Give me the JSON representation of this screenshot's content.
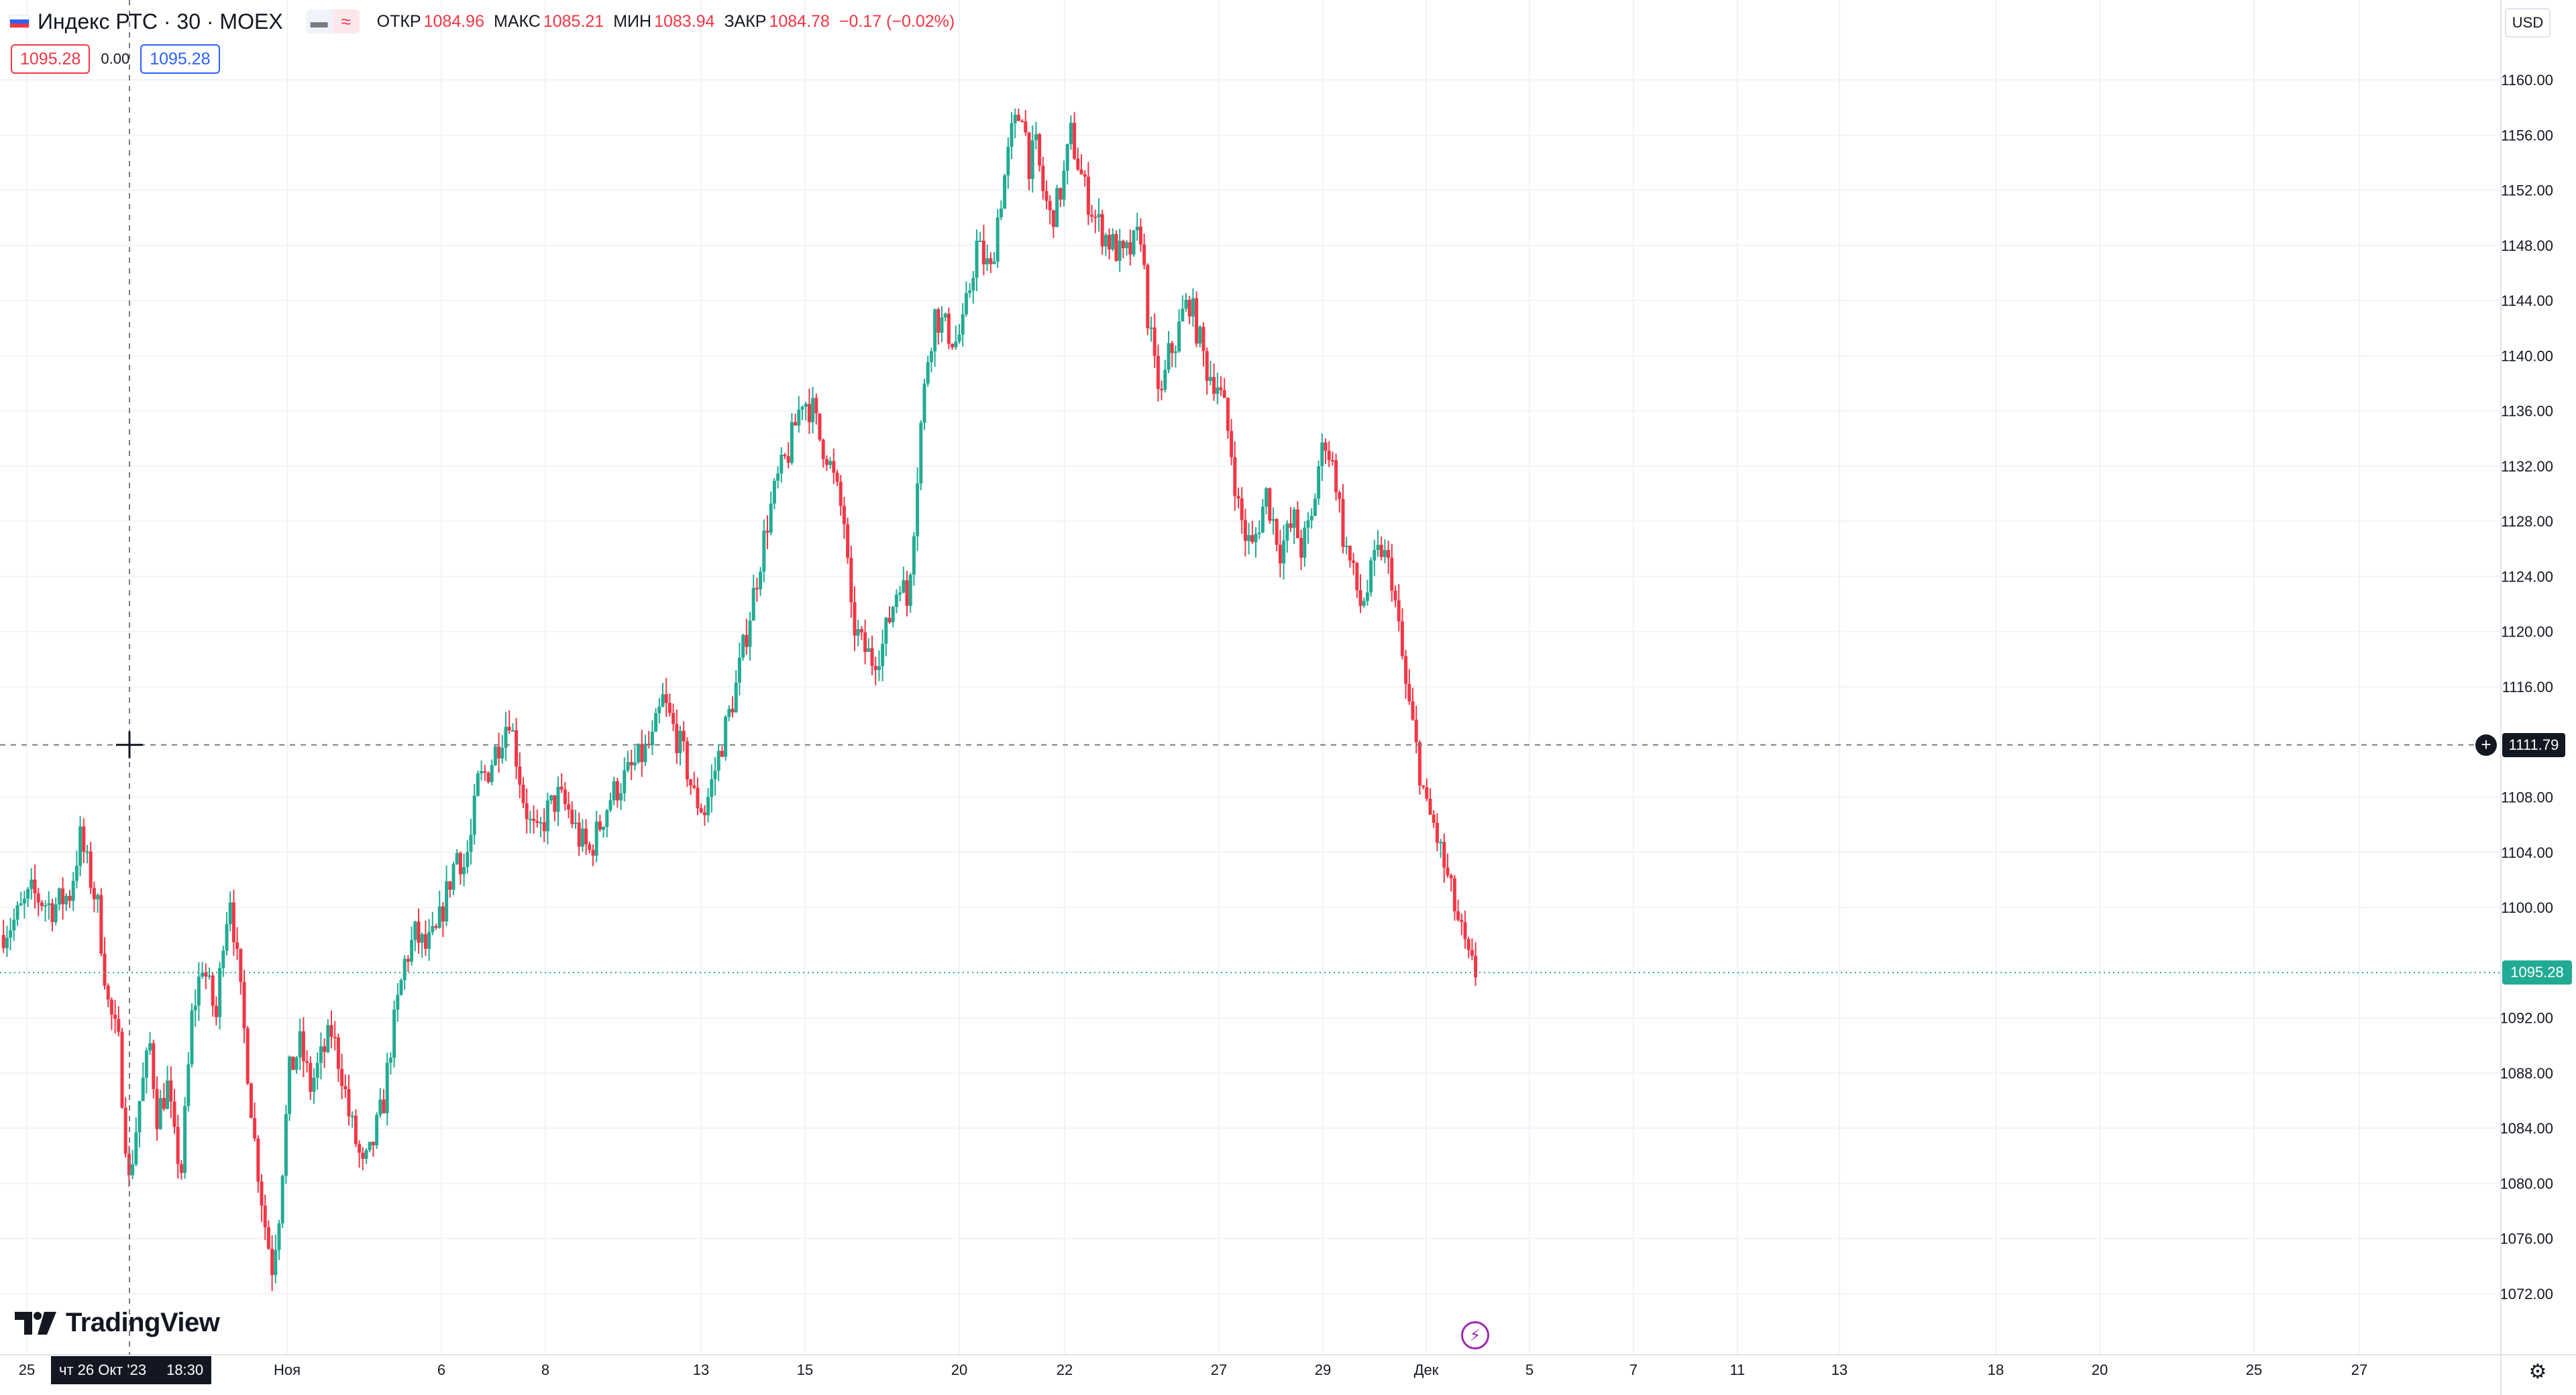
{
  "header": {
    "symbol": "Индекс РТС · 30 · MOEX",
    "ohlc": [
      {
        "label": "ОТКР",
        "value": "1084.96"
      },
      {
        "label": "МАКС",
        "value": "1085.21"
      },
      {
        "label": "МИН",
        "value": "1083.94"
      },
      {
        "label": "ЗАКР",
        "value": "1084.78"
      }
    ],
    "change": "−0.17 (−0.02%)",
    "toggle_icons": [
      "minus-icon",
      "wave-icon"
    ]
  },
  "pricebox": {
    "sell": "1095.28",
    "spread": "0.00",
    "buy": "1095.28"
  },
  "currency": "USD",
  "logo": {
    "text": "TradingView"
  },
  "crosshair": {
    "date": "чт 26 Окт '23",
    "time": "18:30",
    "price": "1111.79"
  },
  "last_price": "1095.28",
  "colors": {
    "up": "#22ab94",
    "down": "#f23645",
    "grid": "#f0f3fa",
    "accent": "#2962ff"
  },
  "chart_data": {
    "type": "candlestick",
    "interval": "30",
    "ylim": [
      1070,
      1162
    ],
    "y_ticks": [
      "1160.00",
      "1156.00",
      "1152.00",
      "1148.00",
      "1144.00",
      "1140.00",
      "1136.00",
      "1132.00",
      "1128.00",
      "1124.00",
      "1120.00",
      "1116.00",
      "1108.00",
      "1104.00",
      "1100.00",
      "1092.00",
      "1088.00",
      "1084.00",
      "1080.00",
      "1076.00",
      "1072.00"
    ],
    "x_ticks": [
      "25",
      "Ноя",
      "6",
      "8",
      "13",
      "15",
      "20",
      "22",
      "27",
      "29",
      "Дек",
      "5",
      "7",
      "11",
      "13",
      "18",
      "20",
      "25",
      "27"
    ],
    "close_path": [
      [
        0,
        1098
      ],
      [
        8,
        1099
      ],
      [
        18,
        1101
      ],
      [
        30,
        1100
      ],
      [
        40,
        1101
      ],
      [
        46,
        1105
      ],
      [
        52,
        1102
      ],
      [
        56,
        1100
      ],
      [
        62,
        1093
      ],
      [
        68,
        1090
      ],
      [
        74,
        1080
      ],
      [
        80,
        1086
      ],
      [
        86,
        1090
      ],
      [
        90,
        1085
      ],
      [
        96,
        1087
      ],
      [
        100,
        1083
      ],
      [
        104,
        1081
      ],
      [
        110,
        1092
      ],
      [
        116,
        1096
      ],
      [
        120,
        1094
      ],
      [
        124,
        1092
      ],
      [
        128,
        1098
      ],
      [
        132,
        1101
      ],
      [
        136,
        1096
      ],
      [
        140,
        1091
      ],
      [
        146,
        1083
      ],
      [
        152,
        1077
      ],
      [
        156,
        1074
      ],
      [
        160,
        1078
      ],
      [
        166,
        1088
      ],
      [
        172,
        1090
      ],
      [
        178,
        1087
      ],
      [
        184,
        1089
      ],
      [
        190,
        1091
      ],
      [
        196,
        1088
      ],
      [
        200,
        1085
      ],
      [
        204,
        1083
      ],
      [
        208,
        1081
      ],
      [
        212,
        1082
      ],
      [
        216,
        1084
      ],
      [
        220,
        1086
      ],
      [
        224,
        1090
      ],
      [
        228,
        1093
      ],
      [
        232,
        1096
      ],
      [
        238,
        1098
      ],
      [
        244,
        1097
      ],
      [
        250,
        1098
      ],
      [
        256,
        1101
      ],
      [
        262,
        1104
      ],
      [
        266,
        1103
      ],
      [
        270,
        1105
      ],
      [
        274,
        1109
      ],
      [
        280,
        1110
      ],
      [
        286,
        1112
      ],
      [
        292,
        1114
      ],
      [
        296,
        1111
      ],
      [
        300,
        1108
      ],
      [
        304,
        1106
      ],
      [
        308,
        1105
      ],
      [
        314,
        1107
      ],
      [
        320,
        1108
      ],
      [
        326,
        1107
      ],
      [
        332,
        1105
      ],
      [
        338,
        1104
      ],
      [
        344,
        1106
      ],
      [
        350,
        1108
      ],
      [
        356,
        1109
      ],
      [
        362,
        1110
      ],
      [
        368,
        1111
      ],
      [
        374,
        1112
      ],
      [
        380,
        1115
      ],
      [
        386,
        1113
      ],
      [
        392,
        1111
      ],
      [
        398,
        1108
      ],
      [
        404,
        1107
      ],
      [
        410,
        1110
      ],
      [
        416,
        1113
      ],
      [
        422,
        1116
      ],
      [
        428,
        1120
      ],
      [
        434,
        1124
      ],
      [
        440,
        1128
      ],
      [
        446,
        1131
      ],
      [
        452,
        1133
      ],
      [
        456,
        1135
      ],
      [
        460,
        1137
      ],
      [
        466,
        1136
      ],
      [
        470,
        1134
      ],
      [
        474,
        1133
      ],
      [
        480,
        1130
      ],
      [
        484,
        1128
      ],
      [
        488,
        1121
      ],
      [
        494,
        1119
      ],
      [
        500,
        1118
      ],
      [
        506,
        1119
      ],
      [
        512,
        1122
      ],
      [
        516,
        1124
      ],
      [
        520,
        1122
      ],
      [
        524,
        1128
      ],
      [
        528,
        1135
      ],
      [
        532,
        1140
      ],
      [
        536,
        1143
      ],
      [
        542,
        1142
      ],
      [
        548,
        1141
      ],
      [
        552,
        1142
      ],
      [
        556,
        1145
      ],
      [
        560,
        1148
      ],
      [
        564,
        1147
      ],
      [
        568,
        1146
      ],
      [
        572,
        1150
      ],
      [
        576,
        1153
      ],
      [
        580,
        1156
      ],
      [
        586,
        1158
      ],
      [
        590,
        1154
      ],
      [
        594,
        1155
      ],
      [
        598,
        1152
      ],
      [
        602,
        1150
      ],
      [
        606,
        1151
      ],
      [
        610,
        1153
      ],
      [
        614,
        1156
      ],
      [
        618,
        1154
      ],
      [
        622,
        1152
      ],
      [
        628,
        1150
      ],
      [
        632,
        1149
      ],
      [
        638,
        1148
      ],
      [
        644,
        1147
      ],
      [
        650,
        1148
      ],
      [
        654,
        1149
      ],
      [
        658,
        1143
      ],
      [
        662,
        1139
      ],
      [
        666,
        1137
      ],
      [
        670,
        1140
      ],
      [
        674,
        1141
      ],
      [
        678,
        1143
      ],
      [
        682,
        1144
      ],
      [
        688,
        1141
      ],
      [
        692,
        1139
      ],
      [
        698,
        1138
      ],
      [
        702,
        1136
      ],
      [
        706,
        1133
      ],
      [
        710,
        1129
      ],
      [
        714,
        1127
      ],
      [
        718,
        1126
      ],
      [
        722,
        1128
      ],
      [
        726,
        1130
      ],
      [
        730,
        1128
      ],
      [
        734,
        1126
      ],
      [
        738,
        1127
      ],
      [
        742,
        1128
      ],
      [
        746,
        1126
      ],
      [
        752,
        1128
      ],
      [
        756,
        1132
      ],
      [
        760,
        1134
      ],
      [
        766,
        1131
      ],
      [
        770,
        1127
      ],
      [
        776,
        1124
      ],
      [
        780,
        1122
      ],
      [
        784,
        1123
      ],
      [
        788,
        1125
      ],
      [
        792,
        1126
      ],
      [
        798,
        1124
      ],
      [
        802,
        1120
      ],
      [
        806,
        1116
      ],
      [
        810,
        1113
      ],
      [
        814,
        1110
      ],
      [
        818,
        1107
      ],
      [
        822,
        1106
      ],
      [
        826,
        1104
      ],
      [
        830,
        1102
      ],
      [
        834,
        1100
      ],
      [
        838,
        1098
      ],
      [
        842,
        1096
      ],
      [
        846,
        1095.28
      ]
    ]
  }
}
